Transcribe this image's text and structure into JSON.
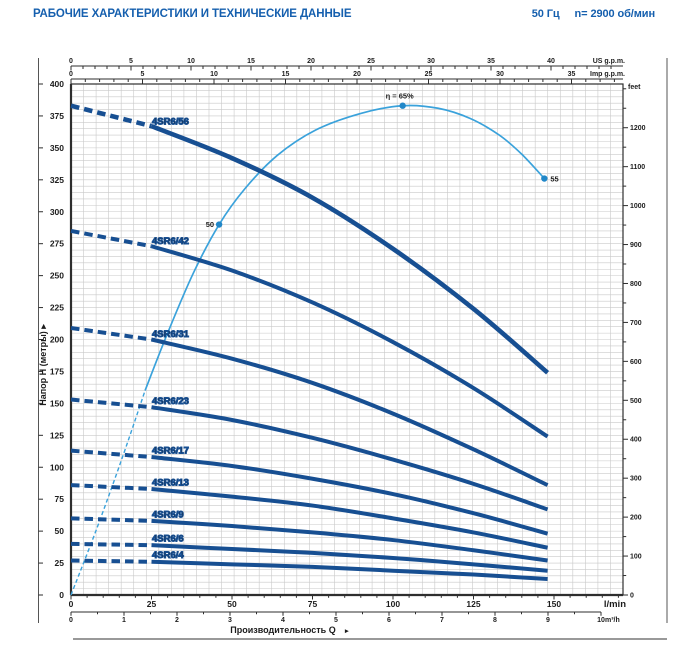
{
  "header": {
    "title": "РАБОЧИЕ ХАРАКТЕРИСТИКИ И ТЕХНИЧЕСКИЕ ДАННЫЕ",
    "frequency": "50 Гц",
    "speed": "n= 2900 об/мин"
  },
  "chart_data": {
    "type": "line",
    "xlabel": "Производительность Q",
    "ylabel": "Напор H (метры)",
    "x_axes": [
      {
        "id": "us_gpm",
        "unit": "US g.p.m.",
        "ticks": [
          0,
          5,
          10,
          15,
          20,
          25,
          30,
          35,
          40
        ],
        "minor_step": 1,
        "max": 45
      },
      {
        "id": "imp_gpm",
        "unit": "Imp g.p.m.",
        "ticks": [
          0,
          5,
          10,
          15,
          20,
          25,
          30,
          35
        ],
        "minor_step": 1,
        "max": 38
      },
      {
        "id": "l_min",
        "unit": "l/min",
        "ticks": [
          0,
          25,
          50,
          75,
          100,
          125,
          150
        ],
        "minor_step": 5,
        "max": 170
      },
      {
        "id": "m3_h",
        "unit": "m³/h",
        "ticks": [
          0,
          1,
          2,
          3,
          4,
          5,
          6,
          7,
          8,
          9,
          10
        ],
        "minor_step": 0.5,
        "max": 10
      }
    ],
    "y_axes": [
      {
        "id": "meters",
        "unit": "Напор H (метры)",
        "ticks": [
          0,
          25,
          50,
          75,
          100,
          125,
          150,
          175,
          200,
          225,
          250,
          275,
          300,
          325,
          350,
          375,
          400
        ],
        "max": 400
      },
      {
        "id": "feet",
        "unit": "feet",
        "ticks": [
          0,
          100,
          200,
          300,
          400,
          500,
          600,
          700,
          800,
          900,
          1000,
          1100,
          1200
        ],
        "minor_step": 50,
        "max": 1300
      }
    ],
    "min_flow_dashed_below_q": 25,
    "series": [
      {
        "name": "4SR6/56",
        "points_q_h": [
          [
            0,
            383
          ],
          [
            25,
            367
          ],
          [
            50,
            342
          ],
          [
            75,
            311
          ],
          [
            100,
            271
          ],
          [
            125,
            224
          ],
          [
            148,
            174
          ]
        ]
      },
      {
        "name": "4SR6/42",
        "points_q_h": [
          [
            0,
            285
          ],
          [
            25,
            273
          ],
          [
            50,
            254
          ],
          [
            75,
            229
          ],
          [
            100,
            198
          ],
          [
            125,
            162
          ],
          [
            148,
            124
          ]
        ]
      },
      {
        "name": "4SR6/31",
        "points_q_h": [
          [
            0,
            209
          ],
          [
            25,
            200
          ],
          [
            50,
            185
          ],
          [
            75,
            166
          ],
          [
            100,
            142
          ],
          [
            125,
            114
          ],
          [
            148,
            86
          ]
        ]
      },
      {
        "name": "4SR6/23",
        "points_q_h": [
          [
            0,
            153
          ],
          [
            25,
            147
          ],
          [
            50,
            137
          ],
          [
            75,
            123
          ],
          [
            100,
            106
          ],
          [
            125,
            87
          ],
          [
            148,
            67
          ]
        ]
      },
      {
        "name": "4SR6/17",
        "points_q_h": [
          [
            0,
            113
          ],
          [
            25,
            108
          ],
          [
            50,
            101
          ],
          [
            75,
            91
          ],
          [
            100,
            79
          ],
          [
            125,
            64
          ],
          [
            148,
            48
          ]
        ]
      },
      {
        "name": "4SR6/13",
        "points_q_h": [
          [
            0,
            86
          ],
          [
            25,
            83
          ],
          [
            50,
            77
          ],
          [
            75,
            70
          ],
          [
            100,
            60
          ],
          [
            125,
            49
          ],
          [
            148,
            37
          ]
        ]
      },
      {
        "name": "4SR6/9",
        "points_q_h": [
          [
            0,
            60
          ],
          [
            25,
            58
          ],
          [
            50,
            54
          ],
          [
            75,
            49
          ],
          [
            100,
            43
          ],
          [
            125,
            35
          ],
          [
            148,
            27
          ]
        ]
      },
      {
        "name": "4SR6/6",
        "points_q_h": [
          [
            0,
            40
          ],
          [
            25,
            39
          ],
          [
            50,
            36
          ],
          [
            75,
            33
          ],
          [
            100,
            29
          ],
          [
            125,
            24
          ],
          [
            148,
            19
          ]
        ]
      },
      {
        "name": "4SR6/4",
        "points_q_h": [
          [
            0,
            27
          ],
          [
            25,
            26
          ],
          [
            50,
            24
          ],
          [
            75,
            22
          ],
          [
            100,
            19
          ],
          [
            125,
            16
          ],
          [
            148,
            12.5
          ]
        ]
      }
    ],
    "efficiency_curve": {
      "dashed_below_q": 23,
      "points_q_h_display": [
        [
          0,
          0
        ],
        [
          8,
          52
        ],
        [
          16,
          108
        ],
        [
          23,
          160
        ],
        [
          30,
          205
        ],
        [
          38,
          252
        ],
        [
          46,
          290
        ],
        [
          54,
          318
        ],
        [
          64,
          344
        ],
        [
          76,
          364
        ],
        [
          90,
          377
        ],
        [
          103,
          383
        ],
        [
          114,
          381
        ],
        [
          124,
          373
        ],
        [
          133,
          360
        ],
        [
          140,
          345
        ],
        [
          147,
          326
        ]
      ],
      "markers": [
        {
          "q": 46,
          "h_display": 290,
          "label": "50",
          "align": "left"
        },
        {
          "q": 103,
          "h_display": 383,
          "label": "η = 65%",
          "align": "top"
        },
        {
          "q": 147,
          "h_display": 326,
          "label": "55",
          "align": "right"
        }
      ]
    },
    "colors": {
      "curve": "#174f92",
      "curve_label": "#154a8a",
      "efficiency": "#3aa2db",
      "efficiency_dot": "#2187c8",
      "grid": "#c9c9c9",
      "axis": "#2e2e2e",
      "title_blue": "#155fae"
    }
  }
}
